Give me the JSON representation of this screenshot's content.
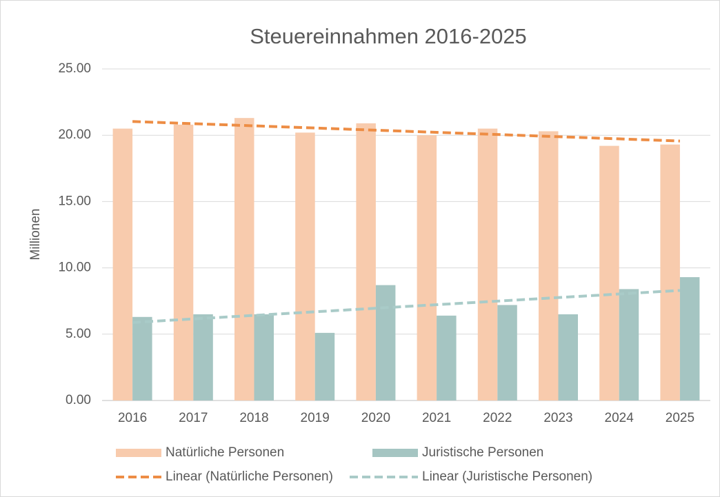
{
  "chart_data": {
    "type": "bar",
    "title": "Steuereinnahmen 2016-2025",
    "y_label": "Millionen",
    "categories": [
      "2016",
      "2017",
      "2018",
      "2019",
      "2020",
      "2021",
      "2022",
      "2023",
      "2024",
      "2025"
    ],
    "series": [
      {
        "name": "Natürliche Personen",
        "color": "#f8cbad",
        "values": [
          20.5,
          20.8,
          21.3,
          20.2,
          20.9,
          20.0,
          20.5,
          20.3,
          19.2,
          19.3
        ]
      },
      {
        "name": "Juristische Personen",
        "color": "#a5c5c2",
        "values": [
          6.3,
          6.5,
          6.5,
          5.1,
          8.7,
          6.4,
          7.2,
          6.5,
          8.4,
          9.3
        ]
      }
    ],
    "trendlines": [
      {
        "name": "Linear (Natürliche Personen)",
        "color": "#ed8d45",
        "series": 0
      },
      {
        "name": "Linear (Juristische Personen)",
        "color": "#a9cbc8",
        "series": 1
      }
    ],
    "ylim": [
      0,
      25
    ],
    "yticks": [
      {
        "value": 0,
        "label": "0.00"
      },
      {
        "value": 5,
        "label": "5.00"
      },
      {
        "value": 10,
        "label": "10.00"
      },
      {
        "value": 15,
        "label": "15.00"
      },
      {
        "value": 20,
        "label": "20.00"
      },
      {
        "value": 25,
        "label": "25.00"
      }
    ],
    "grid": true
  }
}
